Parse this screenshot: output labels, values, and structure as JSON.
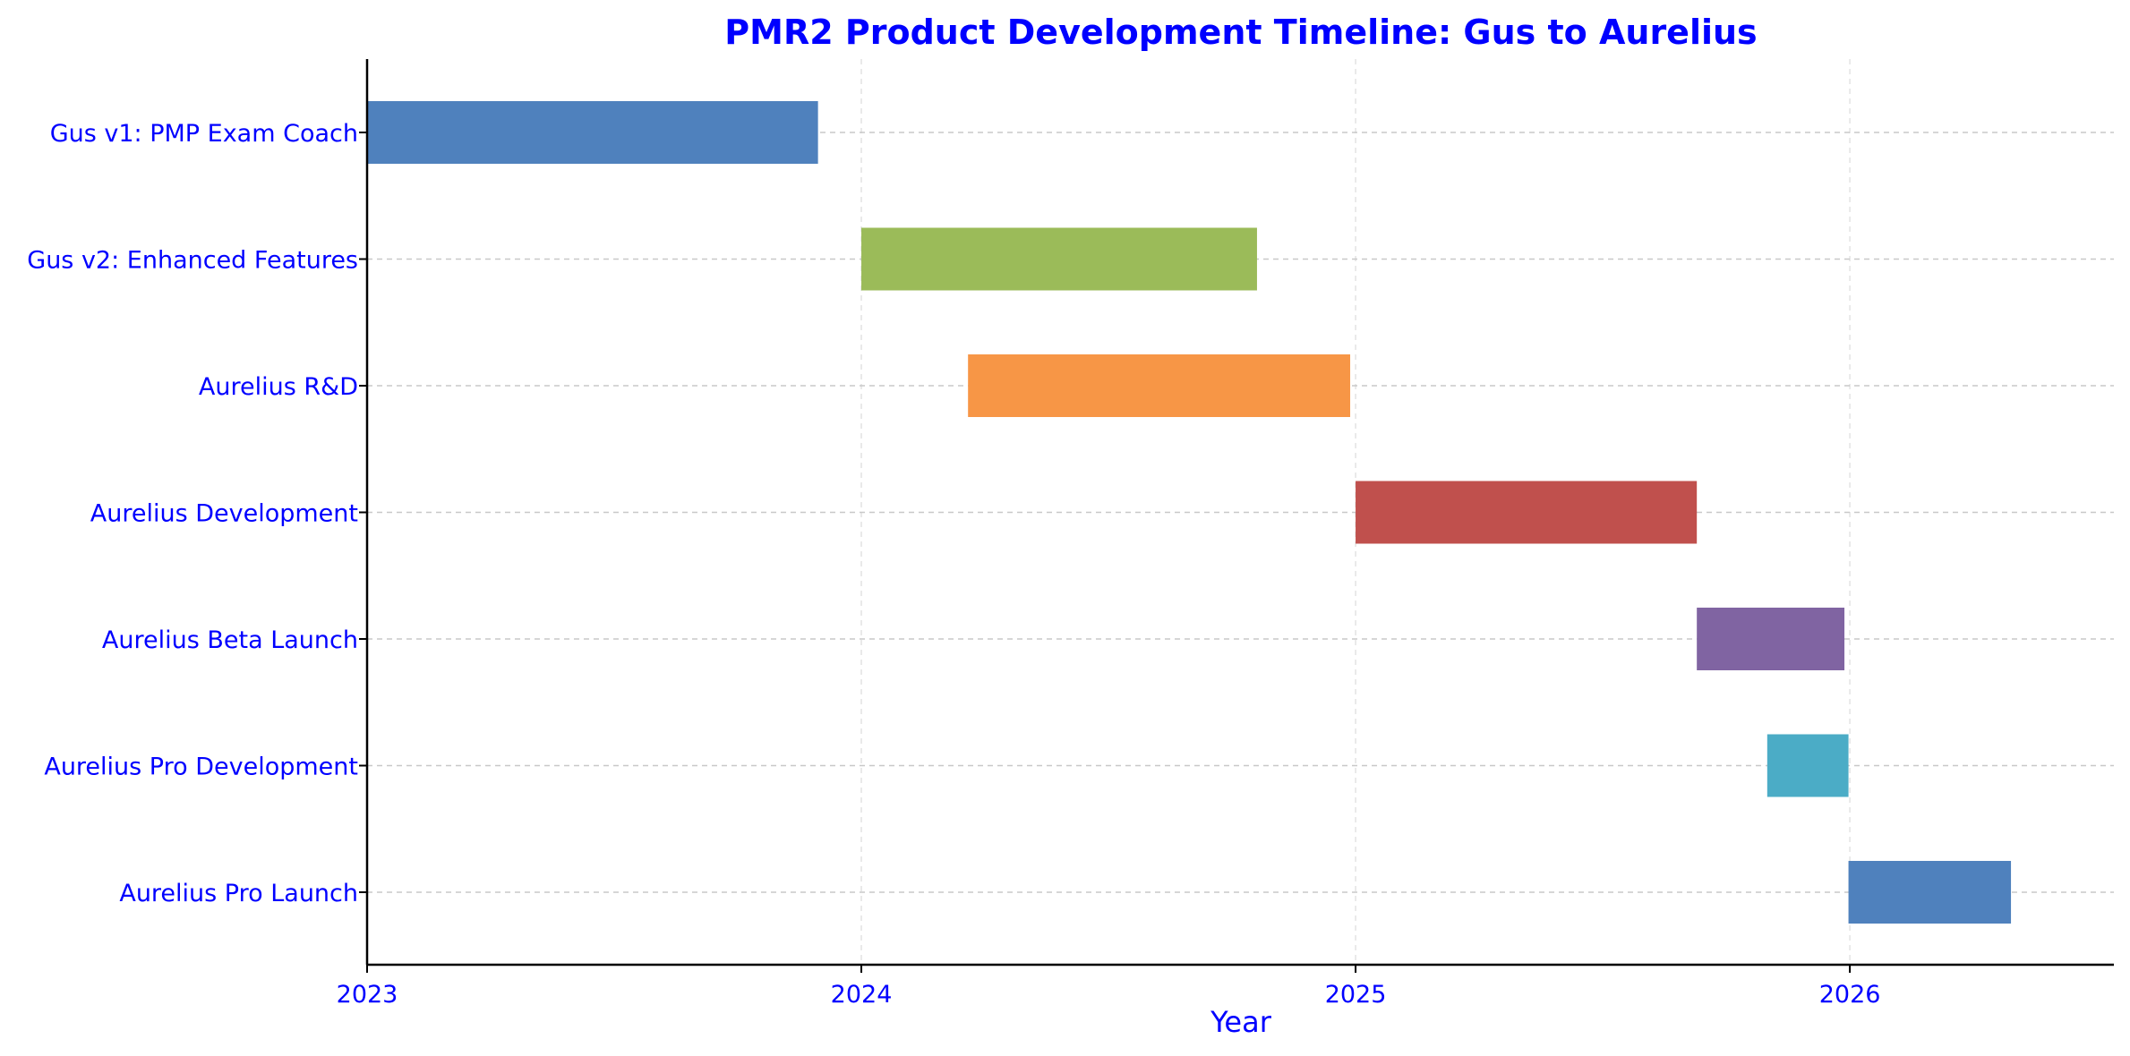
{
  "chart_data": {
    "type": "gantt",
    "title": "PMR2 Product Development Timeline: Gus to Aurelius",
    "xlabel": "Year",
    "ylabel": "",
    "text_color": "#0000ff",
    "xlim": [
      "2023-01-01",
      "2026-07-15"
    ],
    "x_ticks": [
      "2023",
      "2024",
      "2025",
      "2026"
    ],
    "grid": "dashed, both axes",
    "legend": "none",
    "tasks": [
      {
        "label": "Gus v1: PMP Exam Coach",
        "start": "2023-01-01",
        "end": "2023-11-30",
        "color": "#4f81bd"
      },
      {
        "label": "Gus v2: Enhanced Features",
        "start": "2024-01-01",
        "end": "2024-10-20",
        "color": "#9bbb59"
      },
      {
        "label": "Aurelius R&D",
        "start": "2024-03-20",
        "end": "2024-12-28",
        "color": "#f79646"
      },
      {
        "label": "Aurelius Development",
        "start": "2025-01-01",
        "end": "2025-09-10",
        "color": "#c0504d"
      },
      {
        "label": "Aurelius Beta Launch",
        "start": "2025-09-10",
        "end": "2025-12-28",
        "color": "#8064a2"
      },
      {
        "label": "Aurelius Pro Development",
        "start": "2025-11-01",
        "end": "2025-12-31",
        "color": "#4bacc6"
      },
      {
        "label": "Aurelius Pro Launch",
        "start": "2025-12-31",
        "end": "2026-04-30",
        "color": "#4f81bd"
      }
    ]
  }
}
